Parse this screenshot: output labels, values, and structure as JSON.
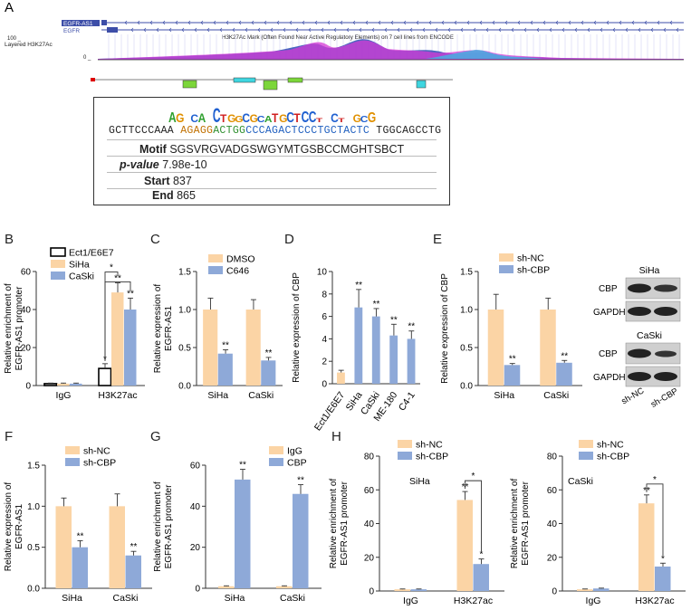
{
  "panel_labels": [
    "A",
    "B",
    "C",
    "D",
    "E",
    "F",
    "G",
    "H"
  ],
  "genome_track": {
    "gene1": "EGFR-AS1",
    "gene2": "EGFR",
    "track_title": "H3K27Ac Mark (Often Found Near Active Regulatory Elements) on 7 cell lines from ENCODE",
    "layer_label": "Layered H3K27Ac",
    "ymax_label": "100 _",
    "ymin_label": "0 _"
  },
  "motif": {
    "logo_letters": "AG.CA.CTGGCGCATGCTCCT.CT.GCG",
    "sequence_pre": "GCTTCCCAAA ",
    "sequence_motif_a": "AGAGG",
    "sequence_motif_b": "ACTGG",
    "sequence_motif_c": "CCCAGACTCCCTGCTACTC",
    "sequence_post": " TGGCAGCCTG",
    "motif_label": "Motif",
    "motif_value": "SGSVRGVADGSWGYMTGSBCCMGHTSBCT",
    "pvalue_label": "p-value",
    "pvalue_value": "7.98e-10",
    "start_label": "Start",
    "start_value": "837",
    "end_label": "End",
    "end_value": "865"
  },
  "colors": {
    "orange": "#fbd4a5",
    "blue": "#8ea9d8",
    "white": "#ffffff",
    "edge": "#555555"
  },
  "chart_data": [
    {
      "id": "B",
      "type": "bar",
      "ylabel": "Relative enrichment of EGFR-AS1 promoter",
      "ylim": [
        0,
        60
      ],
      "yticks": [
        0,
        20,
        40,
        60
      ],
      "categories": [
        "IgG",
        "H3K27ac"
      ],
      "series": [
        {
          "name": "Ect1/E6E7",
          "color": "#ffffff",
          "values": [
            1,
            9
          ],
          "err": [
            0.3,
            2.5
          ]
        },
        {
          "name": "SiHa",
          "color": "#fbd4a5",
          "values": [
            1,
            49
          ],
          "err": [
            0.3,
            5
          ]
        },
        {
          "name": "CaSki",
          "color": "#8ea9d8",
          "values": [
            1,
            40
          ],
          "err": [
            0.3,
            6
          ]
        }
      ],
      "sig": [
        [
          "",
          "",
          ""
        ],
        [
          "*",
          "**",
          "**"
        ]
      ],
      "brackets": [
        {
          "from": [
            1,
            0
          ],
          "to": [
            1,
            1
          ],
          "label": "*"
        },
        {
          "from": [
            1,
            0
          ],
          "to": [
            1,
            2
          ],
          "label": ""
        }
      ],
      "legend": "top-left"
    },
    {
      "id": "C",
      "type": "bar",
      "ylabel": "Relative expression of EGFR-AS1",
      "ylim": [
        0,
        1.5
      ],
      "yticks": [
        0.0,
        0.5,
        1.0,
        1.5
      ],
      "categories": [
        "SiHa",
        "CaSki"
      ],
      "series": [
        {
          "name": "DMSO",
          "color": "#fbd4a5",
          "values": [
            1.0,
            1.0
          ],
          "err": [
            0.15,
            0.13
          ]
        },
        {
          "name": "C646",
          "color": "#8ea9d8",
          "values": [
            0.42,
            0.33
          ],
          "err": [
            0.05,
            0.04
          ]
        }
      ],
      "sig": [
        [
          "",
          "**"
        ],
        [
          "",
          "**"
        ]
      ],
      "legend": "top-left"
    },
    {
      "id": "D",
      "type": "bar",
      "ylabel": "Relative expression of CBP",
      "ylim": [
        0,
        10
      ],
      "yticks": [
        0,
        2,
        4,
        6,
        8,
        10
      ],
      "categories": [
        "Ect1/E6E7",
        "SiHa",
        "CaSki",
        "ME-180",
        "C4-1"
      ],
      "series": [
        {
          "name": "",
          "colors": [
            "#fbd4a5",
            "#8ea9d8",
            "#8ea9d8",
            "#8ea9d8",
            "#8ea9d8"
          ],
          "values": [
            1.0,
            6.8,
            6.0,
            4.3,
            4.0
          ],
          "err": [
            0.2,
            1.6,
            0.7,
            1.0,
            0.7
          ]
        }
      ],
      "sig": [
        [
          "",
          "**",
          "**",
          "**",
          "**"
        ]
      ],
      "rotated_xticks": true
    },
    {
      "id": "E",
      "type": "bar",
      "ylabel": "Relative expression of CBP",
      "ylim": [
        0,
        1.5
      ],
      "yticks": [
        0.0,
        0.5,
        1.0,
        1.5
      ],
      "categories": [
        "SiHa",
        "CaSki"
      ],
      "series": [
        {
          "name": "sh-NC",
          "color": "#fbd4a5",
          "values": [
            1.0,
            1.0
          ],
          "err": [
            0.2,
            0.15
          ]
        },
        {
          "name": "sh-CBP",
          "color": "#8ea9d8",
          "values": [
            0.27,
            0.3
          ],
          "err": [
            0.02,
            0.03
          ]
        }
      ],
      "sig": [
        [
          "",
          "**"
        ],
        [
          "",
          "**"
        ]
      ],
      "legend": "top-left"
    },
    {
      "id": "F",
      "type": "bar",
      "ylabel": "Relative expression of EGFR-AS1",
      "ylim": [
        0,
        1.5
      ],
      "yticks": [
        0.0,
        0.5,
        1.0,
        1.5
      ],
      "categories": [
        "SiHa",
        "CaSki"
      ],
      "series": [
        {
          "name": "sh-NC",
          "color": "#fbd4a5",
          "values": [
            1.0,
            1.0
          ],
          "err": [
            0.1,
            0.15
          ]
        },
        {
          "name": "sh-CBP",
          "color": "#8ea9d8",
          "values": [
            0.5,
            0.4
          ],
          "err": [
            0.08,
            0.05
          ]
        }
      ],
      "sig": [
        [
          "",
          "**"
        ],
        [
          "",
          "**"
        ]
      ],
      "legend": "top-left"
    },
    {
      "id": "G",
      "type": "bar",
      "ylabel": "Relative enrichment of EGFR-AS1 promoter",
      "ylim": [
        0,
        60
      ],
      "yticks": [
        0,
        20,
        40,
        60
      ],
      "categories": [
        "SiHa",
        "CaSki"
      ],
      "series": [
        {
          "name": "IgG",
          "color": "#fbd4a5",
          "values": [
            1,
            1
          ],
          "err": [
            0.2,
            0.2
          ]
        },
        {
          "name": "CBP",
          "color": "#8ea9d8",
          "values": [
            53,
            46
          ],
          "err": [
            5,
            4.5
          ]
        }
      ],
      "sig": [
        [
          "",
          "**"
        ],
        [
          "",
          "**"
        ]
      ],
      "legend": "top-right"
    },
    {
      "id": "H1",
      "type": "bar",
      "ylabel": "Relative enrichment of EGFR-AS1 promoter",
      "ylim": [
        0,
        80
      ],
      "yticks": [
        0,
        20,
        40,
        60,
        80
      ],
      "categories": [
        "IgG",
        "H3K27ac"
      ],
      "inset_label": "SiHa",
      "series": [
        {
          "name": "sh-NC",
          "color": "#fbd4a5",
          "values": [
            1,
            54
          ],
          "err": [
            0.2,
            5
          ]
        },
        {
          "name": "sh-CBP",
          "color": "#8ea9d8",
          "values": [
            1,
            16
          ],
          "err": [
            0.2,
            3
          ]
        }
      ],
      "sig": [
        [
          "",
          ""
        ],
        [
          "**",
          "*"
        ]
      ],
      "brackets": [
        {
          "from": [
            1,
            0
          ],
          "to": [
            1,
            1
          ],
          "label": "*"
        }
      ],
      "legend": "top-left"
    },
    {
      "id": "H2",
      "type": "bar",
      "ylabel": "Relative enrichment of EGFR-AS1 promoter",
      "ylim": [
        0,
        80
      ],
      "yticks": [
        0,
        20,
        40,
        60,
        80
      ],
      "categories": [
        "IgG",
        "H3K27ac"
      ],
      "inset_label": "CaSki",
      "series": [
        {
          "name": "sh-NC",
          "color": "#fbd4a5",
          "values": [
            1,
            52
          ],
          "err": [
            0.2,
            5
          ]
        },
        {
          "name": "sh-CBP",
          "color": "#8ea9d8",
          "values": [
            1.5,
            14.5
          ],
          "err": [
            0.2,
            2
          ]
        }
      ],
      "sig": [
        [
          "",
          ""
        ],
        [
          "**",
          "*"
        ]
      ],
      "brackets": [
        {
          "from": [
            1,
            0
          ],
          "to": [
            1,
            1
          ],
          "label": "*"
        }
      ],
      "legend": "top-left"
    }
  ],
  "western_blot": {
    "cell1": "SiHa",
    "cell2": "CaSki",
    "band1": "CBP",
    "band2": "GAPDH",
    "band3": "CBP",
    "band4": "GAPDH",
    "lane1": "sh-NC",
    "lane2": "sh-CBP"
  }
}
